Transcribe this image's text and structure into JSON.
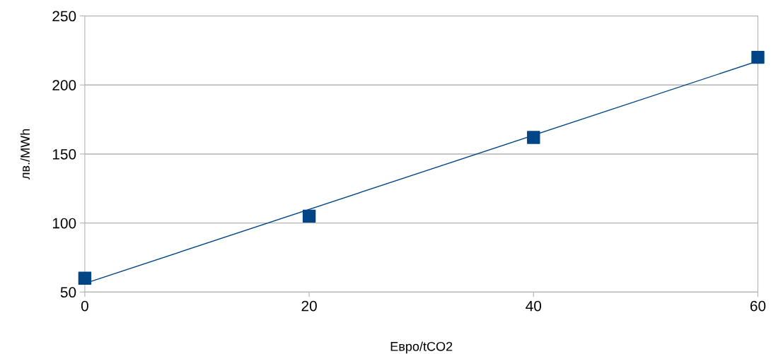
{
  "chart_data": {
    "type": "line",
    "xlabel": "Евро/tCO2",
    "ylabel": "лв./MWh",
    "xlim": [
      0,
      60
    ],
    "xticks": [
      0,
      20,
      40,
      60
    ],
    "ylim": [
      50,
      250
    ],
    "yticks": [
      50,
      100,
      150,
      200,
      250
    ],
    "grid": "y",
    "legend": false,
    "series": [
      {
        "type": "scatter",
        "marker": "square",
        "color": "#004586",
        "x": [
          0,
          20,
          40,
          60
        ],
        "values": [
          60,
          105,
          162,
          220
        ]
      },
      {
        "marker": "none",
        "color": "#004586",
        "x": [
          0,
          60
        ],
        "values": [
          56.2,
          217.3
        ]
      }
    ]
  }
}
